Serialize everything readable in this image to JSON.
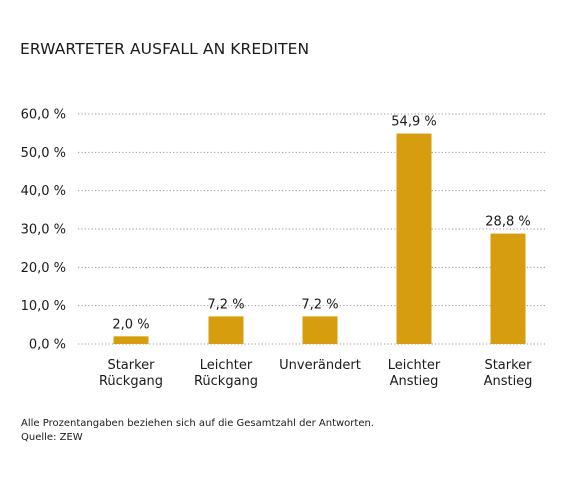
{
  "chart_data": {
    "type": "bar",
    "title": "ERWARTETER AUSFALL AN KREDITEN",
    "xlabel": "",
    "ylabel": "",
    "categories": [
      [
        "Starker",
        "Rückgang"
      ],
      [
        "Leichter",
        "Rückgang"
      ],
      [
        "Unverändert"
      ],
      [
        "Leichter",
        "Anstieg"
      ],
      [
        "Starker",
        "Anstieg"
      ]
    ],
    "values": [
      2.0,
      7.2,
      7.2,
      54.9,
      28.8
    ],
    "value_labels": [
      "2,0 %",
      "7,2 %",
      "7,2 %",
      "54,9 %",
      "28,8 %"
    ],
    "ylim": [
      0,
      60
    ],
    "yticks": [
      0,
      10,
      20,
      30,
      40,
      50,
      60
    ],
    "ytick_labels": [
      "0,0 %",
      "10,0 %",
      "20,0 %",
      "30,0 %",
      "40,0 %",
      "50,0 %",
      "60,0 %"
    ],
    "grid": true,
    "bar_color": "#D69E0E",
    "grid_color": "#9a9a9a"
  },
  "footnote": {
    "note": "Alle Prozentangaben beziehen sich auf die Gesamtzahl der Antworten.",
    "source": "Quelle: ZEW"
  }
}
